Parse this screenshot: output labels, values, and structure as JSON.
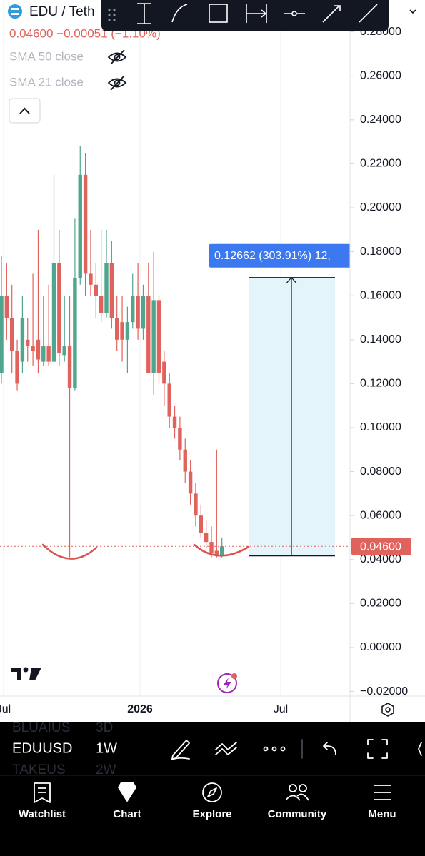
{
  "chart_data": {
    "type": "candlestick",
    "categories": [
      null,
      null,
      null,
      null,
      null,
      null,
      null,
      null,
      null,
      null,
      null,
      null,
      null,
      null,
      null,
      null,
      null,
      null,
      null,
      null,
      null,
      null,
      null,
      null,
      null,
      null,
      null,
      null,
      null,
      null,
      null,
      null,
      null,
      null,
      null,
      null,
      null,
      null,
      null,
      null,
      null,
      null,
      null
    ],
    "open": [
      0.125,
      0.16,
      0.15,
      0.135,
      0.13,
      0.14,
      0.137,
      0.14,
      0.13,
      0.137,
      0.13,
      0.175,
      0.133,
      0.137,
      0.118,
      0.168,
      0.215,
      0.17,
      0.165,
      0.16,
      0.152,
      0.175,
      0.15,
      0.148,
      0.14,
      0.148,
      0.16,
      0.145,
      0.16,
      0.125,
      0.158,
      0.13,
      0.12,
      0.105,
      0.1,
      0.09,
      0.08,
      0.07,
      0.06,
      0.052,
      0.048,
      0.044,
      0.042
    ],
    "high": [
      0.178,
      0.175,
      0.165,
      0.14,
      0.16,
      0.15,
      0.17,
      0.19,
      0.16,
      0.165,
      0.215,
      0.19,
      0.16,
      0.16,
      0.195,
      0.228,
      0.225,
      0.19,
      0.175,
      0.19,
      0.19,
      0.185,
      0.16,
      0.16,
      0.155,
      0.17,
      0.175,
      0.165,
      0.175,
      0.18,
      0.16,
      0.135,
      0.125,
      0.11,
      0.105,
      0.095,
      0.085,
      0.075,
      0.065,
      0.058,
      0.055,
      0.09,
      0.05
    ],
    "low": [
      0.12,
      0.14,
      0.125,
      0.117,
      0.125,
      0.13,
      0.128,
      0.125,
      0.128,
      0.128,
      0.13,
      0.128,
      0.13,
      0.041,
      0.117,
      0.165,
      0.16,
      0.16,
      0.15,
      0.148,
      0.15,
      0.145,
      0.135,
      0.13,
      0.125,
      0.145,
      0.14,
      0.14,
      0.125,
      0.115,
      0.12,
      0.11,
      0.1,
      0.095,
      0.085,
      0.075,
      0.065,
      0.055,
      0.05,
      0.045,
      0.041,
      0.041,
      0.041
    ],
    "close": [
      0.16,
      0.15,
      0.135,
      0.12,
      0.15,
      0.137,
      0.135,
      0.131,
      0.137,
      0.13,
      0.175,
      0.134,
      0.137,
      0.118,
      0.168,
      0.215,
      0.17,
      0.165,
      0.16,
      0.152,
      0.175,
      0.15,
      0.14,
      0.14,
      0.148,
      0.16,
      0.145,
      0.16,
      0.125,
      0.158,
      0.125,
      0.12,
      0.105,
      0.1,
      0.09,
      0.08,
      0.07,
      0.06,
      0.052,
      0.048,
      0.043,
      0.042,
      0.046
    ],
    "up_color": "#4fa58e",
    "down_color": "#e0625c",
    "ylim": [
      -0.0221,
      0.2945
    ],
    "yticks": [
      {
        "value": -0.02,
        "label": "−0.02000"
      },
      {
        "value": 0,
        "label": "0.00000"
      },
      {
        "value": 0.02,
        "label": "0.02000"
      },
      {
        "value": 0.04,
        "label": "0.04000"
      },
      {
        "value": 0.06,
        "label": "0.06000"
      },
      {
        "value": 0.08,
        "label": "0.08000"
      },
      {
        "value": 0.1,
        "label": "0.10000"
      },
      {
        "value": 0.12,
        "label": "0.12000"
      },
      {
        "value": 0.14,
        "label": "0.14000"
      },
      {
        "value": 0.16,
        "label": "0.16000"
      },
      {
        "value": 0.18,
        "label": "0.18000"
      },
      {
        "value": 0.2,
        "label": "0.20000"
      },
      {
        "value": 0.22,
        "label": "0.22000"
      },
      {
        "value": 0.24,
        "label": "0.24000"
      },
      {
        "value": 0.26,
        "label": "0.26000"
      },
      {
        "value": 0.28,
        "label": "0.28000"
      }
    ],
    "xticks": [
      {
        "value": 0.4,
        "label": "Jul"
      },
      {
        "value": 26.4,
        "label": "2026"
      },
      {
        "value": 53.2,
        "label": "Jul"
      }
    ],
    "grid": "x",
    "last_price": {
      "value": 0.046,
      "label": "0.04600"
    },
    "measure": {
      "from": 0.04166,
      "to": 0.16828,
      "label": "0.12662 (303.91%) 12,"
    }
  },
  "header": {
    "symbol": "EDU / Teth",
    "quote": "0.04600 −0.00051 (−1.10%)",
    "indicators": [
      "SMA 50 close",
      "SMA 21 close"
    ]
  },
  "bottom_bar": {
    "symbol": "EDUUSD",
    "interval": "1W",
    "prev_symbol": "BLUAIUS",
    "prev_interval": "3D",
    "next_symbol": "TAKEUS",
    "next_interval": "2W"
  },
  "nav": [
    "Watchlist",
    "Chart",
    "Explore",
    "Community",
    "Menu"
  ]
}
